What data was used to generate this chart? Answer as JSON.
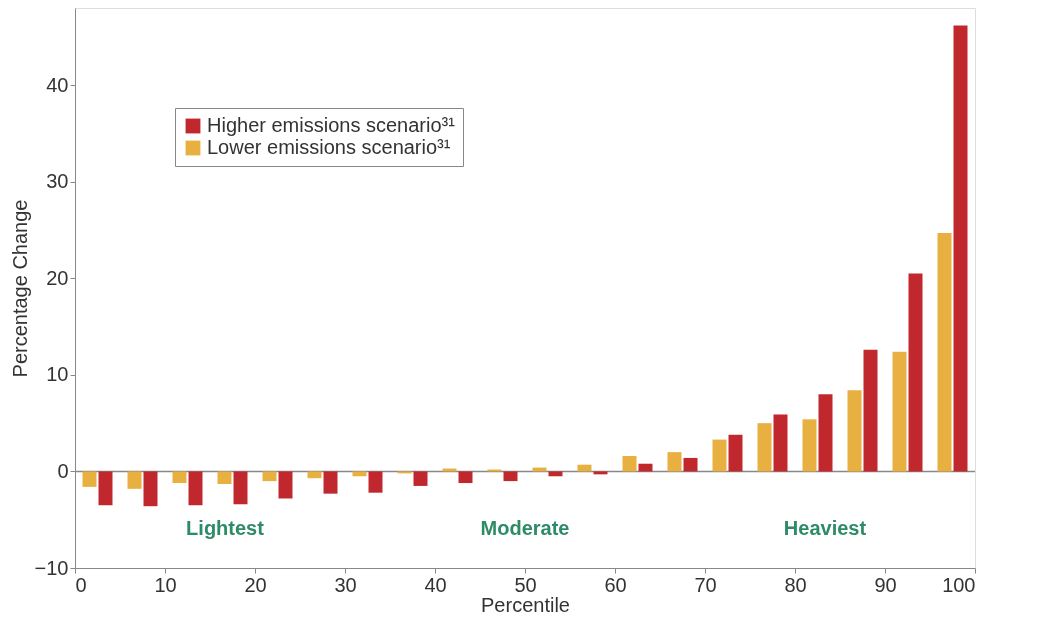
{
  "chart_data": {
    "type": "bar",
    "xlabel": "Percentile",
    "ylabel": "Percentage Change",
    "x": [
      2.5,
      7.5,
      12.5,
      17.5,
      22.5,
      27.5,
      32.5,
      37.5,
      42.5,
      47.5,
      52.5,
      57.5,
      62.5,
      67.5,
      72.5,
      77.5,
      82.5,
      87.5,
      92.5,
      97.5
    ],
    "series": [
      {
        "name": "Lower emissions scenario³¹",
        "color": "#e8b040",
        "values": [
          -1.6,
          -1.8,
          -1.2,
          -1.3,
          -1.0,
          -0.7,
          -0.5,
          -0.2,
          0.3,
          0.2,
          0.4,
          0.7,
          1.6,
          2.0,
          3.3,
          5.0,
          5.4,
          8.4,
          12.4,
          24.7
        ]
      },
      {
        "name": "Higher emissions scenario³¹",
        "color": "#c0282e",
        "values": [
          -3.5,
          -3.6,
          -3.5,
          -3.4,
          -2.8,
          -2.3,
          -2.2,
          -1.5,
          -1.2,
          -1.0,
          -0.5,
          -0.3,
          0.8,
          1.4,
          3.8,
          5.9,
          8.0,
          12.6,
          20.5,
          46.2
        ]
      }
    ],
    "xlim": [
      0,
      100
    ],
    "xticks": [
      0,
      10,
      20,
      30,
      40,
      50,
      60,
      70,
      80,
      90,
      100
    ],
    "ylim": [
      -10,
      48
    ],
    "yticks": [
      -10,
      0,
      10,
      20,
      30,
      40
    ],
    "annotations": [
      "Lightest",
      "Moderate",
      "Heaviest"
    ],
    "ref_lines": [
      {
        "axis": "y",
        "value": 0,
        "color": "#888888"
      }
    ],
    "legend": "top left",
    "grid": false
  }
}
